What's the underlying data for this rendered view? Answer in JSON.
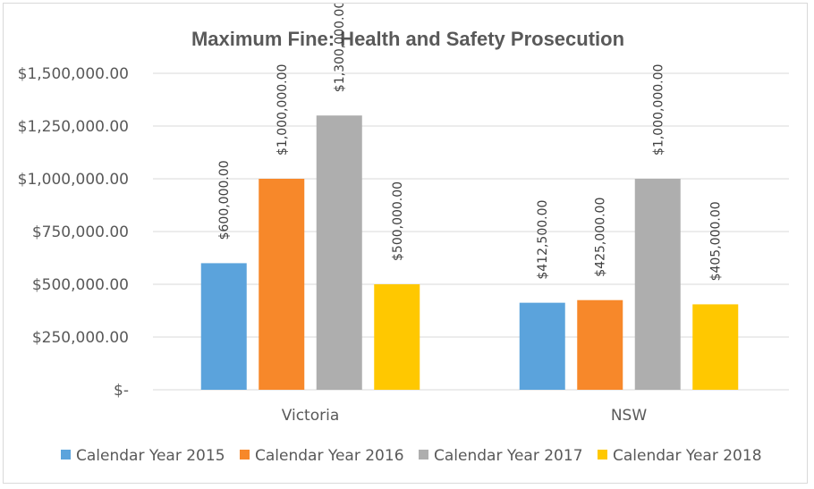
{
  "chart_data": {
    "type": "bar",
    "title": "Maximum Fine: Health and Safety Prosecution",
    "categories": [
      "Victoria",
      "NSW"
    ],
    "series": [
      {
        "name": "Calendar Year 2015",
        "color": "#5ba3dc",
        "values": [
          600000,
          412500
        ],
        "labels": [
          "$600,000.00",
          "$412,500.00"
        ]
      },
      {
        "name": "Calendar Year 2016",
        "color": "#f7882a",
        "values": [
          1000000,
          425000
        ],
        "labels": [
          "$1,000,000.00",
          "$425,000.00"
        ]
      },
      {
        "name": "Calendar Year 2017",
        "color": "#aeaeae",
        "values": [
          1300000,
          1000000
        ],
        "labels": [
          "$1,300,000.00",
          "$1,000,000.00"
        ]
      },
      {
        "name": "Calendar Year 2018",
        "color": "#ffc800",
        "values": [
          500000,
          405000
        ],
        "labels": [
          "$500,000.00",
          "$405,000.00"
        ]
      }
    ],
    "ylim": [
      0,
      1500000
    ],
    "yticks": [
      0,
      250000,
      500000,
      750000,
      1000000,
      1250000,
      1500000
    ],
    "ytick_labels": [
      "$-",
      "$250,000.00",
      "$500,000.00",
      "$750,000.00",
      "$1,000,000.00",
      "$1,250,000.00",
      "$1,500,000.00"
    ],
    "grid": true,
    "legend_position": "bottom"
  }
}
